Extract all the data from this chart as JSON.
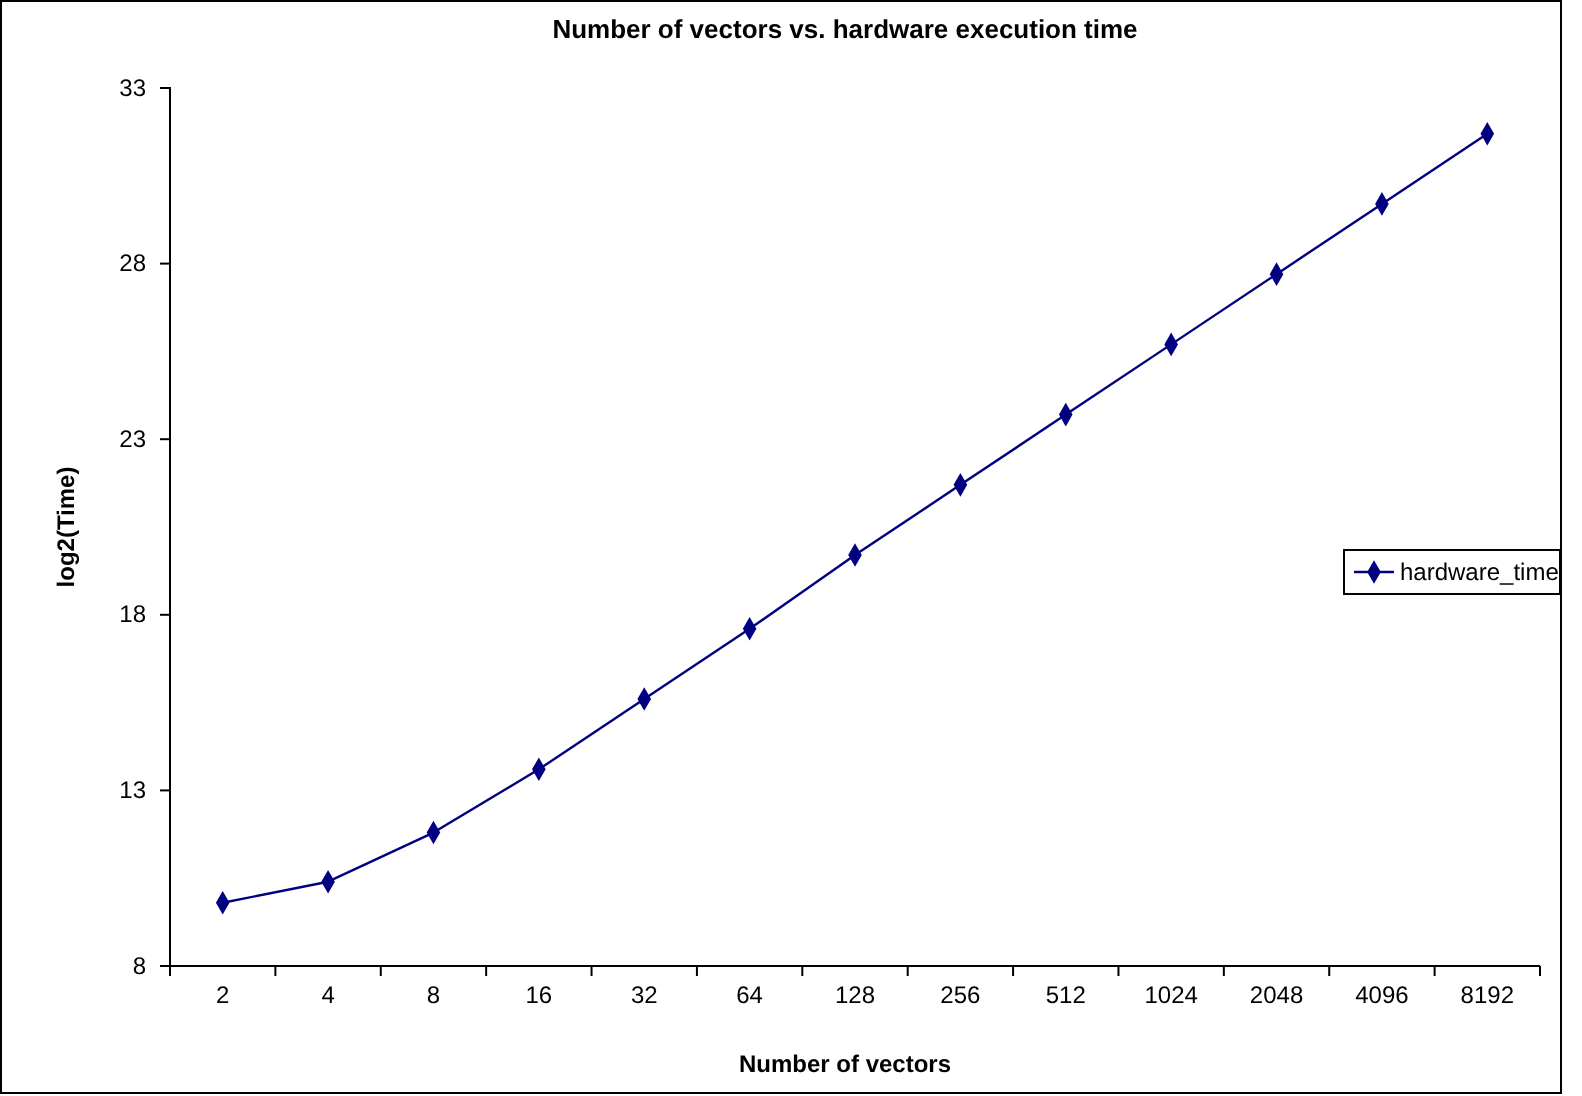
{
  "chart_data": {
    "type": "line",
    "title": "Number of vectors vs. hardware execution time",
    "xlabel": "Number of vectors",
    "ylabel": "log2(Time)",
    "categories": [
      "2",
      "4",
      "8",
      "16",
      "32",
      "64",
      "128",
      "256",
      "512",
      "1024",
      "2048",
      "4096",
      "8192"
    ],
    "series": [
      {
        "name": "hardware_time",
        "color": "#000080",
        "values": [
          9.8,
          10.4,
          11.8,
          13.6,
          15.6,
          17.6,
          19.7,
          21.7,
          23.7,
          25.7,
          27.7,
          29.7,
          31.7
        ]
      }
    ],
    "ylim": [
      8,
      33
    ],
    "yticks": [
      8,
      13,
      18,
      23,
      28,
      33
    ],
    "grid": false,
    "legend": "right",
    "marker": "diamond",
    "line_style": "solid"
  }
}
